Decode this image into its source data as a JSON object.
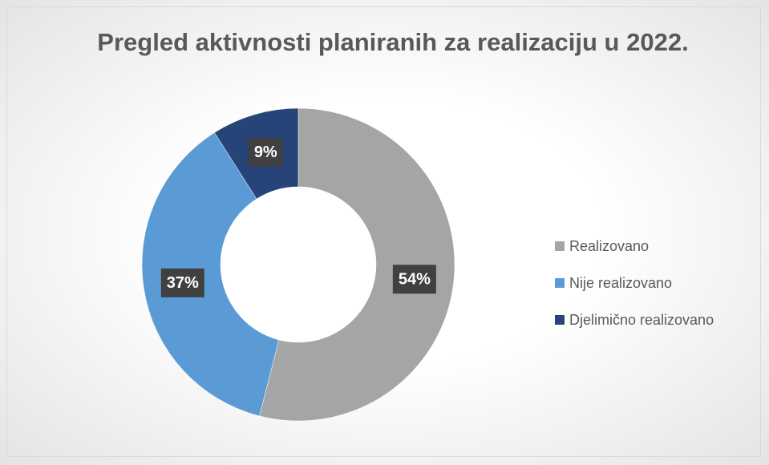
{
  "chart_data": {
    "type": "doughnut",
    "title": "Pregled aktivnosti planiranih za realizaciju u 2022.",
    "categories": [
      "Realizovano",
      "Nije realizovano",
      "Djelimično realizovano"
    ],
    "values": [
      54,
      37,
      9
    ],
    "value_labels": [
      "54%",
      "37%",
      "9%"
    ],
    "colors": [
      "#a5a5a5",
      "#5b9bd5",
      "#264478"
    ],
    "legend": "right"
  }
}
